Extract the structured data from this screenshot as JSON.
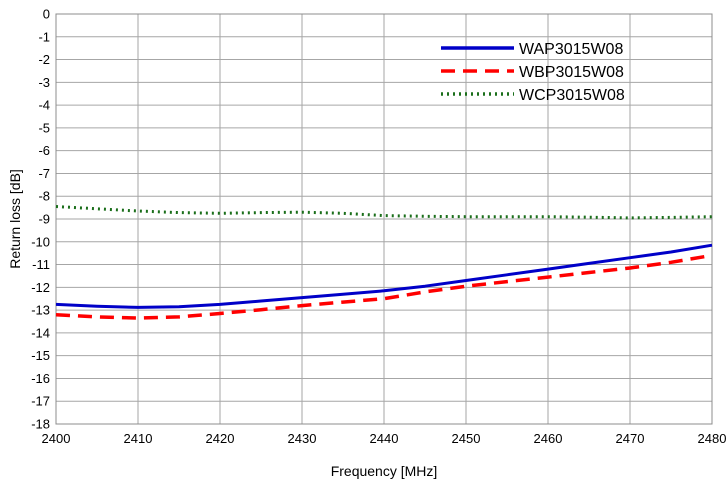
{
  "chart_data": {
    "type": "line",
    "title": "",
    "xlabel": "Frequency [MHz]",
    "ylabel": "Return loss [dB]",
    "xlim": [
      2400,
      2480
    ],
    "ylim": [
      -18,
      0
    ],
    "xticks": [
      2400,
      2410,
      2420,
      2430,
      2440,
      2450,
      2460,
      2470,
      2480
    ],
    "yticks": [
      0,
      -1,
      -2,
      -3,
      -4,
      -5,
      -6,
      -7,
      -8,
      -9,
      -10,
      -11,
      -12,
      -13,
      -14,
      -15,
      -16,
      -17,
      -18
    ],
    "grid": true,
    "legend": "top-right",
    "series": [
      {
        "name": "WAP3015W08",
        "color": "#0000c8",
        "style": "solid",
        "x": [
          2400,
          2405,
          2410,
          2415,
          2420,
          2425,
          2430,
          2435,
          2440,
          2445,
          2450,
          2455,
          2460,
          2465,
          2470,
          2475,
          2480
        ],
        "y": [
          -12.75,
          -12.83,
          -12.88,
          -12.85,
          -12.75,
          -12.6,
          -12.45,
          -12.3,
          -12.15,
          -11.95,
          -11.7,
          -11.45,
          -11.2,
          -10.95,
          -10.7,
          -10.45,
          -10.15
        ]
      },
      {
        "name": "WBP3015W08",
        "color": "#ff0000",
        "style": "dashed",
        "x": [
          2400,
          2405,
          2410,
          2415,
          2420,
          2425,
          2430,
          2435,
          2440,
          2445,
          2450,
          2455,
          2460,
          2465,
          2470,
          2475,
          2480
        ],
        "y": [
          -13.2,
          -13.3,
          -13.35,
          -13.3,
          -13.15,
          -12.98,
          -12.8,
          -12.65,
          -12.5,
          -12.2,
          -11.95,
          -11.75,
          -11.55,
          -11.35,
          -11.15,
          -10.9,
          -10.6
        ]
      },
      {
        "name": "WCP3015W08",
        "color": "#1a6e1a",
        "style": "dotted",
        "x": [
          2400,
          2405,
          2410,
          2415,
          2420,
          2425,
          2430,
          2435,
          2440,
          2445,
          2450,
          2455,
          2460,
          2465,
          2470,
          2475,
          2480
        ],
        "y": [
          -8.45,
          -8.55,
          -8.65,
          -8.72,
          -8.75,
          -8.72,
          -8.7,
          -8.75,
          -8.85,
          -8.88,
          -8.9,
          -8.9,
          -8.9,
          -8.92,
          -8.95,
          -8.93,
          -8.9
        ]
      }
    ]
  }
}
